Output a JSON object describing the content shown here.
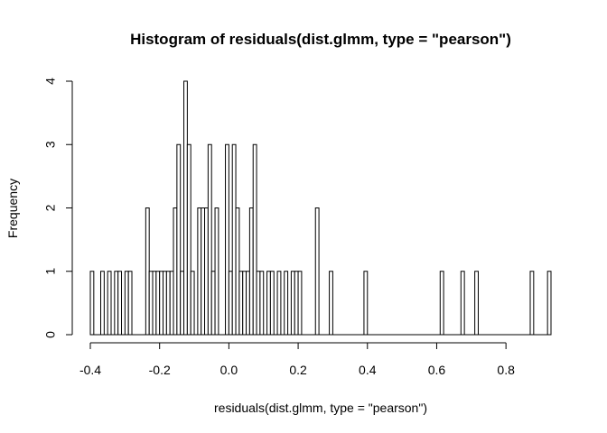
{
  "chart_data": {
    "type": "bar",
    "title": "Histogram of residuals(dist.glmm, type = \"pearson\")",
    "xlabel": "residuals(dist.glmm, type = \"pearson\")",
    "ylabel": "Frequency",
    "xlim": [
      -0.4,
      0.93
    ],
    "ylim": [
      0,
      4
    ],
    "bin_width": 0.01,
    "x_ticks": [
      -0.4,
      -0.2,
      0.0,
      0.2,
      0.4,
      0.6,
      0.8
    ],
    "x_tick_labels": [
      "-0.4",
      "-0.2",
      "0.0",
      "0.2",
      "0.4",
      "0.6",
      "0.8"
    ],
    "y_ticks": [
      0,
      1,
      2,
      3,
      4
    ],
    "y_tick_labels": [
      "0",
      "1",
      "2",
      "3",
      "4"
    ],
    "grid": false,
    "bins": [
      {
        "x0": -0.4,
        "x1": -0.39,
        "count": 1
      },
      {
        "x0": -0.37,
        "x1": -0.36,
        "count": 1
      },
      {
        "x0": -0.35,
        "x1": -0.34,
        "count": 1
      },
      {
        "x0": -0.33,
        "x1": -0.32,
        "count": 1
      },
      {
        "x0": -0.32,
        "x1": -0.31,
        "count": 1
      },
      {
        "x0": -0.3,
        "x1": -0.29,
        "count": 1
      },
      {
        "x0": -0.29,
        "x1": -0.28,
        "count": 1
      },
      {
        "x0": -0.24,
        "x1": -0.23,
        "count": 2
      },
      {
        "x0": -0.23,
        "x1": -0.22,
        "count": 1
      },
      {
        "x0": -0.22,
        "x1": -0.21,
        "count": 1
      },
      {
        "x0": -0.21,
        "x1": -0.2,
        "count": 1
      },
      {
        "x0": -0.2,
        "x1": -0.19,
        "count": 1
      },
      {
        "x0": -0.19,
        "x1": -0.18,
        "count": 1
      },
      {
        "x0": -0.18,
        "x1": -0.17,
        "count": 1
      },
      {
        "x0": -0.17,
        "x1": -0.16,
        "count": 1
      },
      {
        "x0": -0.16,
        "x1": -0.15,
        "count": 2
      },
      {
        "x0": -0.15,
        "x1": -0.14,
        "count": 3
      },
      {
        "x0": -0.14,
        "x1": -0.13,
        "count": 1
      },
      {
        "x0": -0.13,
        "x1": -0.12,
        "count": 4
      },
      {
        "x0": -0.12,
        "x1": -0.11,
        "count": 3
      },
      {
        "x0": -0.11,
        "x1": -0.1,
        "count": 1
      },
      {
        "x0": -0.09,
        "x1": -0.08,
        "count": 2
      },
      {
        "x0": -0.08,
        "x1": -0.07,
        "count": 2
      },
      {
        "x0": -0.07,
        "x1": -0.06,
        "count": 2
      },
      {
        "x0": -0.06,
        "x1": -0.05,
        "count": 3
      },
      {
        "x0": -0.05,
        "x1": -0.04,
        "count": 1
      },
      {
        "x0": -0.04,
        "x1": -0.03,
        "count": 2
      },
      {
        "x0": -0.01,
        "x1": 0.0,
        "count": 3
      },
      {
        "x0": 0.0,
        "x1": 0.01,
        "count": 1
      },
      {
        "x0": 0.01,
        "x1": 0.02,
        "count": 3
      },
      {
        "x0": 0.02,
        "x1": 0.03,
        "count": 2
      },
      {
        "x0": 0.03,
        "x1": 0.04,
        "count": 1
      },
      {
        "x0": 0.04,
        "x1": 0.05,
        "count": 1
      },
      {
        "x0": 0.05,
        "x1": 0.06,
        "count": 1
      },
      {
        "x0": 0.06,
        "x1": 0.07,
        "count": 2
      },
      {
        "x0": 0.07,
        "x1": 0.08,
        "count": 3
      },
      {
        "x0": 0.08,
        "x1": 0.09,
        "count": 1
      },
      {
        "x0": 0.09,
        "x1": 0.1,
        "count": 1
      },
      {
        "x0": 0.11,
        "x1": 0.12,
        "count": 1
      },
      {
        "x0": 0.12,
        "x1": 0.13,
        "count": 1
      },
      {
        "x0": 0.14,
        "x1": 0.15,
        "count": 1
      },
      {
        "x0": 0.16,
        "x1": 0.17,
        "count": 1
      },
      {
        "x0": 0.18,
        "x1": 0.19,
        "count": 1
      },
      {
        "x0": 0.19,
        "x1": 0.2,
        "count": 1
      },
      {
        "x0": 0.2,
        "x1": 0.21,
        "count": 1
      },
      {
        "x0": 0.25,
        "x1": 0.26,
        "count": 2
      },
      {
        "x0": 0.29,
        "x1": 0.3,
        "count": 1
      },
      {
        "x0": 0.39,
        "x1": 0.4,
        "count": 1
      },
      {
        "x0": 0.61,
        "x1": 0.62,
        "count": 1
      },
      {
        "x0": 0.67,
        "x1": 0.68,
        "count": 1
      },
      {
        "x0": 0.71,
        "x1": 0.72,
        "count": 1
      },
      {
        "x0": 0.87,
        "x1": 0.88,
        "count": 1
      },
      {
        "x0": 0.92,
        "x1": 0.93,
        "count": 1
      }
    ]
  }
}
